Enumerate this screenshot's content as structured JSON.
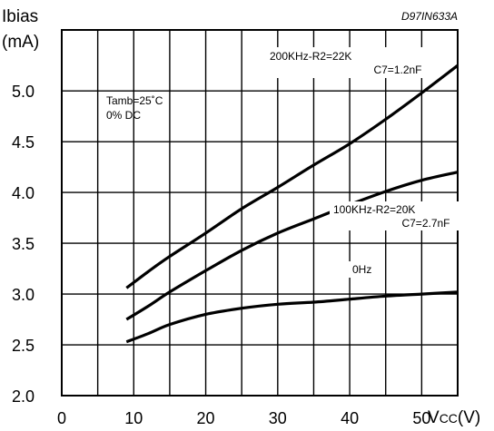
{
  "chart_data": {
    "type": "line",
    "doc_code": "D97IN633A",
    "ylabel_line1": "Ibias",
    "ylabel_line2": "(mA)",
    "xlabel_main": "V",
    "xlabel_sub": "CC",
    "xlabel_unit": "(V)",
    "xlim": [
      0,
      55
    ],
    "ylim": [
      2.0,
      5.6
    ],
    "x_ticks": [
      0,
      10,
      20,
      30,
      40,
      50
    ],
    "x_tick_labels": [
      "0",
      "10",
      "20",
      "30",
      "40",
      "50"
    ],
    "y_ticks": [
      2.0,
      2.5,
      3.0,
      3.5,
      4.0,
      4.5,
      5.0
    ],
    "y_tick_labels": [
      "2.0",
      "2.5",
      "3.0",
      "3.5",
      "4.0",
      "4.5",
      "5.0"
    ],
    "x_gridlines": [
      5,
      10,
      15,
      20,
      25,
      30,
      35,
      40,
      45,
      50
    ],
    "y_gridlines": [
      2.5,
      3.0,
      3.5,
      4.0,
      4.5,
      5.0
    ],
    "conditions": [
      "Tamb=25˚C",
      "0% DC"
    ],
    "series": [
      {
        "label_lines": [
          "200KHz-R2=22K",
          "C7=1.2nF"
        ],
        "x": [
          9,
          12,
          15,
          20,
          25,
          30,
          35,
          40,
          45,
          50,
          55
        ],
        "y": [
          3.06,
          3.22,
          3.37,
          3.6,
          3.84,
          4.05,
          4.27,
          4.48,
          4.72,
          4.98,
          5.25
        ]
      },
      {
        "label_lines": [
          "100KHz-R2=20K",
          "C7=2.7nF"
        ],
        "x": [
          9,
          12,
          15,
          20,
          25,
          30,
          35,
          40,
          45,
          50,
          55
        ],
        "y": [
          2.75,
          2.88,
          3.02,
          3.23,
          3.43,
          3.6,
          3.74,
          3.88,
          4.01,
          4.12,
          4.2
        ]
      },
      {
        "label_lines": [
          "0Hz"
        ],
        "x": [
          9,
          12,
          15,
          20,
          25,
          30,
          35,
          40,
          45,
          50,
          55
        ],
        "y": [
          2.53,
          2.61,
          2.7,
          2.8,
          2.86,
          2.9,
          2.92,
          2.95,
          2.98,
          3.0,
          3.02
        ]
      }
    ],
    "grid": true
  }
}
